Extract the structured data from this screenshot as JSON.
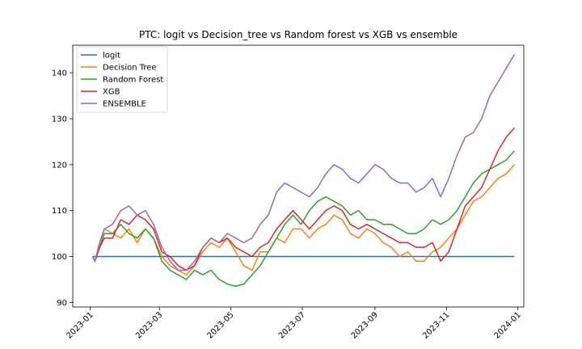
{
  "chart_data": {
    "type": "line",
    "title": "PTC: logit vs Decision_tree vs Random forest vs XGB vs ensemble",
    "xlabel": "",
    "ylabel": "",
    "xlim": [
      "2022-12-17",
      "2024-01-06"
    ],
    "ylim": [
      89,
      146
    ],
    "x_ticks": [
      "2023-01",
      "2023-03",
      "2023-05",
      "2023-07",
      "2023-09",
      "2023-11",
      "2024-01"
    ],
    "y_ticks": [
      90,
      100,
      110,
      120,
      130,
      140
    ],
    "grid": false,
    "legend_position": "top-left",
    "series": [
      {
        "name": "logit",
        "color": "#1f77b4",
        "points": [
          [
            "2023-01-03",
            100
          ],
          [
            "2023-01-09",
            100
          ],
          [
            "2023-01-20",
            100
          ],
          [
            "2023-02-10",
            100
          ],
          [
            "2023-03-10",
            100
          ],
          [
            "2023-05-01",
            100
          ],
          [
            "2023-07-03",
            100
          ],
          [
            "2023-09-01",
            100
          ],
          [
            "2023-11-01",
            100
          ],
          [
            "2023-12-29",
            100
          ]
        ]
      },
      {
        "name": "Decision Tree",
        "color": "#ff7f0e",
        "points": [
          [
            "2023-01-03",
            100
          ],
          [
            "2023-01-05",
            99
          ],
          [
            "2023-01-09",
            103
          ],
          [
            "2023-01-13",
            106
          ],
          [
            "2023-01-20",
            105
          ],
          [
            "2023-01-27",
            104
          ],
          [
            "2023-02-03",
            106
          ],
          [
            "2023-02-10",
            103
          ],
          [
            "2023-02-17",
            106
          ],
          [
            "2023-02-24",
            104
          ],
          [
            "2023-03-03",
            100
          ],
          [
            "2023-03-10",
            98
          ],
          [
            "2023-03-17",
            97
          ],
          [
            "2023-03-24",
            96
          ],
          [
            "2023-03-31",
            98
          ],
          [
            "2023-04-07",
            101
          ],
          [
            "2023-04-14",
            103
          ],
          [
            "2023-04-21",
            102
          ],
          [
            "2023-04-28",
            104
          ],
          [
            "2023-05-05",
            101
          ],
          [
            "2023-05-12",
            98
          ],
          [
            "2023-05-19",
            97
          ],
          [
            "2023-05-26",
            101
          ],
          [
            "2023-06-02",
            101
          ],
          [
            "2023-06-09",
            104
          ],
          [
            "2023-06-16",
            103
          ],
          [
            "2023-06-23",
            106
          ],
          [
            "2023-06-30",
            106
          ],
          [
            "2023-07-07",
            104
          ],
          [
            "2023-07-14",
            106
          ],
          [
            "2023-07-21",
            107
          ],
          [
            "2023-07-28",
            109
          ],
          [
            "2023-08-04",
            108
          ],
          [
            "2023-08-11",
            105
          ],
          [
            "2023-08-18",
            104
          ],
          [
            "2023-08-25",
            106
          ],
          [
            "2023-09-01",
            105
          ],
          [
            "2023-09-08",
            103
          ],
          [
            "2023-09-15",
            102
          ],
          [
            "2023-09-22",
            100
          ],
          [
            "2023-09-29",
            101
          ],
          [
            "2023-10-06",
            99
          ],
          [
            "2023-10-13",
            99
          ],
          [
            "2023-10-20",
            101
          ],
          [
            "2023-10-27",
            102
          ],
          [
            "2023-11-03",
            104
          ],
          [
            "2023-11-10",
            106
          ],
          [
            "2023-11-17",
            109
          ],
          [
            "2023-11-24",
            112
          ],
          [
            "2023-12-01",
            113
          ],
          [
            "2023-12-08",
            115
          ],
          [
            "2023-12-15",
            117
          ],
          [
            "2023-12-22",
            118
          ],
          [
            "2023-12-29",
            120
          ]
        ]
      },
      {
        "name": "Random Forest",
        "color": "#2ca02c",
        "points": [
          [
            "2023-01-03",
            100
          ],
          [
            "2023-01-05",
            99
          ],
          [
            "2023-01-09",
            102
          ],
          [
            "2023-01-13",
            105
          ],
          [
            "2023-01-20",
            105
          ],
          [
            "2023-01-27",
            107
          ],
          [
            "2023-02-03",
            105
          ],
          [
            "2023-02-10",
            104
          ],
          [
            "2023-02-17",
            106
          ],
          [
            "2023-02-24",
            104
          ],
          [
            "2023-03-03",
            99
          ],
          [
            "2023-03-10",
            97
          ],
          [
            "2023-03-17",
            96
          ],
          [
            "2023-03-24",
            95
          ],
          [
            "2023-03-31",
            97
          ],
          [
            "2023-04-07",
            96
          ],
          [
            "2023-04-14",
            97
          ],
          [
            "2023-04-21",
            95
          ],
          [
            "2023-04-28",
            94
          ],
          [
            "2023-05-05",
            93.5
          ],
          [
            "2023-05-12",
            94
          ],
          [
            "2023-05-19",
            96
          ],
          [
            "2023-05-26",
            98
          ],
          [
            "2023-06-02",
            101
          ],
          [
            "2023-06-09",
            104
          ],
          [
            "2023-06-16",
            107
          ],
          [
            "2023-06-23",
            109
          ],
          [
            "2023-06-30",
            107
          ],
          [
            "2023-07-07",
            110
          ],
          [
            "2023-07-14",
            112
          ],
          [
            "2023-07-21",
            113
          ],
          [
            "2023-07-28",
            112
          ],
          [
            "2023-08-04",
            111
          ],
          [
            "2023-08-11",
            109
          ],
          [
            "2023-08-18",
            110
          ],
          [
            "2023-08-25",
            108
          ],
          [
            "2023-09-01",
            108
          ],
          [
            "2023-09-08",
            107
          ],
          [
            "2023-09-15",
            107
          ],
          [
            "2023-09-22",
            106
          ],
          [
            "2023-09-29",
            105
          ],
          [
            "2023-10-06",
            105
          ],
          [
            "2023-10-13",
            106
          ],
          [
            "2023-10-20",
            108
          ],
          [
            "2023-10-27",
            107
          ],
          [
            "2023-11-03",
            108
          ],
          [
            "2023-11-10",
            110
          ],
          [
            "2023-11-17",
            113
          ],
          [
            "2023-11-24",
            116
          ],
          [
            "2023-12-01",
            118
          ],
          [
            "2023-12-08",
            119
          ],
          [
            "2023-12-15",
            120
          ],
          [
            "2023-12-22",
            121
          ],
          [
            "2023-12-29",
            123
          ]
        ]
      },
      {
        "name": "XGB",
        "color": "#d62728",
        "points": [
          [
            "2023-01-03",
            100
          ],
          [
            "2023-01-05",
            99
          ],
          [
            "2023-01-09",
            102
          ],
          [
            "2023-01-13",
            104
          ],
          [
            "2023-01-20",
            104
          ],
          [
            "2023-01-27",
            108
          ],
          [
            "2023-02-03",
            107
          ],
          [
            "2023-02-10",
            109
          ],
          [
            "2023-02-17",
            108
          ],
          [
            "2023-02-24",
            106
          ],
          [
            "2023-03-03",
            101
          ],
          [
            "2023-03-10",
            100
          ],
          [
            "2023-03-17",
            98
          ],
          [
            "2023-03-24",
            97
          ],
          [
            "2023-03-31",
            98
          ],
          [
            "2023-04-07",
            102
          ],
          [
            "2023-04-14",
            104
          ],
          [
            "2023-04-21",
            103
          ],
          [
            "2023-04-28",
            104
          ],
          [
            "2023-05-05",
            102
          ],
          [
            "2023-05-12",
            101
          ],
          [
            "2023-05-19",
            100
          ],
          [
            "2023-05-26",
            102
          ],
          [
            "2023-06-02",
            103
          ],
          [
            "2023-06-09",
            106
          ],
          [
            "2023-06-16",
            108
          ],
          [
            "2023-06-23",
            110
          ],
          [
            "2023-06-30",
            108
          ],
          [
            "2023-07-07",
            106
          ],
          [
            "2023-07-14",
            108
          ],
          [
            "2023-07-21",
            110
          ],
          [
            "2023-07-28",
            111
          ],
          [
            "2023-08-04",
            110
          ],
          [
            "2023-08-11",
            107
          ],
          [
            "2023-08-18",
            106
          ],
          [
            "2023-08-25",
            107
          ],
          [
            "2023-09-01",
            106
          ],
          [
            "2023-09-08",
            105
          ],
          [
            "2023-09-15",
            104
          ],
          [
            "2023-09-22",
            103
          ],
          [
            "2023-09-29",
            103
          ],
          [
            "2023-10-06",
            102
          ],
          [
            "2023-10-13",
            102
          ],
          [
            "2023-10-20",
            103
          ],
          [
            "2023-10-27",
            99
          ],
          [
            "2023-11-03",
            101
          ],
          [
            "2023-11-10",
            106
          ],
          [
            "2023-11-17",
            111
          ],
          [
            "2023-11-24",
            113
          ],
          [
            "2023-12-01",
            115
          ],
          [
            "2023-12-08",
            119
          ],
          [
            "2023-12-15",
            123
          ],
          [
            "2023-12-22",
            126
          ],
          [
            "2023-12-29",
            128
          ]
        ]
      },
      {
        "name": "ENSEMBLE",
        "color": "#9467bd",
        "points": [
          [
            "2023-01-03",
            100
          ],
          [
            "2023-01-05",
            99
          ],
          [
            "2023-01-09",
            103
          ],
          [
            "2023-01-13",
            106
          ],
          [
            "2023-01-20",
            107
          ],
          [
            "2023-01-27",
            110
          ],
          [
            "2023-02-03",
            111
          ],
          [
            "2023-02-10",
            109
          ],
          [
            "2023-02-17",
            110
          ],
          [
            "2023-02-24",
            107
          ],
          [
            "2023-03-03",
            102
          ],
          [
            "2023-03-10",
            99
          ],
          [
            "2023-03-17",
            97
          ],
          [
            "2023-03-24",
            97
          ],
          [
            "2023-03-31",
            99
          ],
          [
            "2023-04-07",
            102
          ],
          [
            "2023-04-14",
            104
          ],
          [
            "2023-04-21",
            103
          ],
          [
            "2023-04-28",
            105
          ],
          [
            "2023-05-05",
            104
          ],
          [
            "2023-05-12",
            103
          ],
          [
            "2023-05-19",
            104
          ],
          [
            "2023-05-26",
            107
          ],
          [
            "2023-06-02",
            109
          ],
          [
            "2023-06-09",
            114
          ],
          [
            "2023-06-16",
            116
          ],
          [
            "2023-06-23",
            115
          ],
          [
            "2023-06-30",
            114
          ],
          [
            "2023-07-07",
            113
          ],
          [
            "2023-07-14",
            115
          ],
          [
            "2023-07-21",
            118
          ],
          [
            "2023-07-28",
            120
          ],
          [
            "2023-08-04",
            119
          ],
          [
            "2023-08-11",
            117
          ],
          [
            "2023-08-18",
            116
          ],
          [
            "2023-08-25",
            118
          ],
          [
            "2023-09-01",
            120
          ],
          [
            "2023-09-08",
            119
          ],
          [
            "2023-09-15",
            117
          ],
          [
            "2023-09-22",
            116
          ],
          [
            "2023-09-29",
            116
          ],
          [
            "2023-10-06",
            114
          ],
          [
            "2023-10-13",
            115
          ],
          [
            "2023-10-20",
            117
          ],
          [
            "2023-10-27",
            113
          ],
          [
            "2023-11-03",
            117
          ],
          [
            "2023-11-10",
            122
          ],
          [
            "2023-11-17",
            126
          ],
          [
            "2023-11-24",
            127
          ],
          [
            "2023-12-01",
            130
          ],
          [
            "2023-12-08",
            135
          ],
          [
            "2023-12-15",
            138
          ],
          [
            "2023-12-22",
            141
          ],
          [
            "2023-12-29",
            144
          ]
        ]
      }
    ]
  }
}
